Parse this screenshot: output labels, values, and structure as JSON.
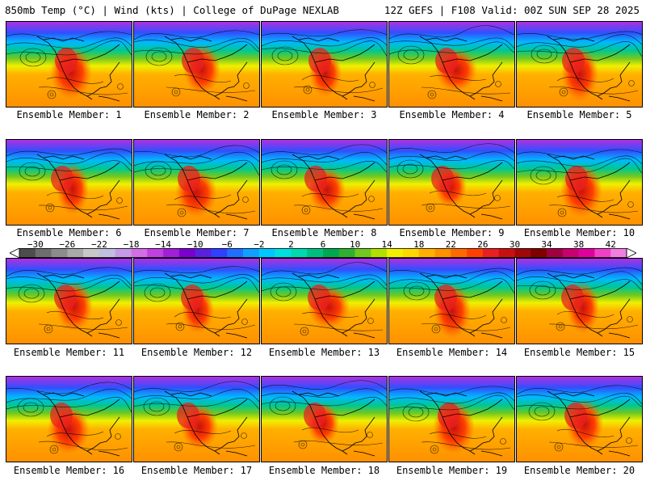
{
  "title_left": "850mb Temp (°C) | Wind (kts) | College of DuPage NEXLAB",
  "title_right": "12Z GEFS | F108 Valid: 00Z SUN SEP 28 2025",
  "panels": [
    {
      "label": "Ensemble Member: 1"
    },
    {
      "label": "Ensemble Member: 2"
    },
    {
      "label": "Ensemble Member: 3"
    },
    {
      "label": "Ensemble Member: 4"
    },
    {
      "label": "Ensemble Member: 5"
    },
    {
      "label": "Ensemble Member: 6"
    },
    {
      "label": "Ensemble Member: 7"
    },
    {
      "label": "Ensemble Member: 8"
    },
    {
      "label": "Ensemble Member: 9"
    },
    {
      "label": "Ensemble Member: 10"
    },
    {
      "label": "Ensemble Member: 11"
    },
    {
      "label": "Ensemble Member: 12"
    },
    {
      "label": "Ensemble Member: 13"
    },
    {
      "label": "Ensemble Member: 14"
    },
    {
      "label": "Ensemble Member: 15"
    },
    {
      "label": "Ensemble Member: 16"
    },
    {
      "label": "Ensemble Member: 17"
    },
    {
      "label": "Ensemble Member: 18"
    },
    {
      "label": "Ensemble Member: 19"
    },
    {
      "label": "Ensemble Member: 20"
    }
  ],
  "colorbar": {
    "tick_labels": [
      "−30",
      "−26",
      "−22",
      "−18",
      "−14",
      "−10",
      "−6",
      "−2",
      "2",
      "6",
      "10",
      "14",
      "18",
      "22",
      "26",
      "30",
      "34",
      "38",
      "42"
    ],
    "min": -32,
    "max": 44,
    "step": 2,
    "colors": [
      "#4d4d4d",
      "#6e6e6e",
      "#8c8c8c",
      "#a9a9a9",
      "#c8c8c8",
      "#bfbfe0",
      "#c59ae6",
      "#d26ee6",
      "#c040e0",
      "#a020d8",
      "#7a00d0",
      "#5a20e0",
      "#3040ff",
      "#2070ff",
      "#10a0ff",
      "#00c8ff",
      "#00e0e0",
      "#00d8b0",
      "#00c080",
      "#00a850",
      "#30b030",
      "#70c820",
      "#b0e000",
      "#f0f000",
      "#ffd800",
      "#ffb000",
      "#ff9000",
      "#ff6a00",
      "#ff4000",
      "#e82020",
      "#c81010",
      "#a00808",
      "#800000",
      "#a00040",
      "#c80070",
      "#e000a0",
      "#f040c8",
      "#f080e0"
    ]
  }
}
